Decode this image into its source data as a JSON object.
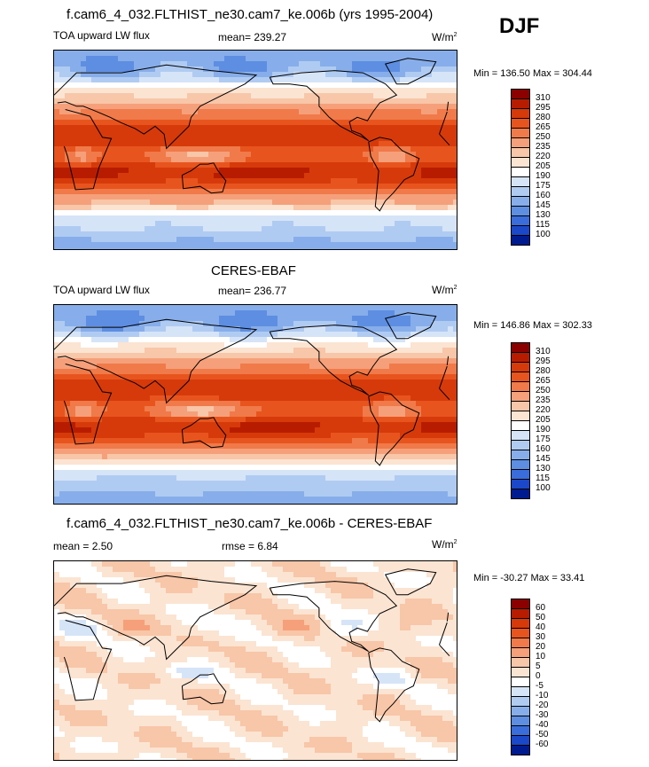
{
  "season": "DJF",
  "panels": [
    {
      "title": "f.cam6_4_032.FLTHIST_ne30.cam7_ke.006b (yrs 1995-2004)",
      "left_label": "TOA upward LW flux",
      "mid_label": "mean= 239.27",
      "right_label": "W/m",
      "right_label_sup": "2",
      "minmax": "Min = 136.50 Max = 304.44"
    },
    {
      "title": "CERES-EBAF",
      "left_label": "TOA upward LW flux",
      "mid_label": "mean= 236.77",
      "right_label": "W/m",
      "right_label_sup": "2",
      "minmax": "Min = 146.86 Max = 302.33"
    },
    {
      "title": "f.cam6_4_032.FLTHIST_ne30.cam7_ke.006b - CERES-EBAF",
      "left_label": "mean =   2.50",
      "mid_label": "rmse =   6.84",
      "right_label": "W/m",
      "right_label_sup": "2",
      "minmax": "Min = -30.27 Max =  33.41"
    }
  ],
  "chart_data": [
    {
      "type": "heatmap",
      "title": "f.cam6_4_032.FLTHIST_ne30.cam7_ke.006b (yrs 1995-2004)",
      "variable": "TOA upward LW flux",
      "units": "W/m2",
      "mean": 239.27,
      "min": 136.5,
      "max": 304.44,
      "colorbar_levels": [
        310,
        295,
        280,
        265,
        250,
        235,
        220,
        205,
        190,
        175,
        160,
        145,
        130,
        115,
        100
      ],
      "colors": [
        "#8b0000",
        "#b81c00",
        "#d63a0a",
        "#e8541e",
        "#f07a4a",
        "#f5a07a",
        "#f8c6a8",
        "#fbe4d2",
        "#ffffff",
        "#d6e4f8",
        "#b0cbf2",
        "#87aeea",
        "#5e8ee2",
        "#3a6ddb",
        "#1b48c9",
        "#001a8f"
      ]
    },
    {
      "type": "heatmap",
      "title": "CERES-EBAF",
      "variable": "TOA upward LW flux",
      "units": "W/m2",
      "mean": 236.77,
      "min": 146.86,
      "max": 302.33,
      "colorbar_levels": [
        310,
        295,
        280,
        265,
        250,
        235,
        220,
        205,
        190,
        175,
        160,
        145,
        130,
        115,
        100
      ],
      "colors": [
        "#8b0000",
        "#b81c00",
        "#d63a0a",
        "#e8541e",
        "#f07a4a",
        "#f5a07a",
        "#f8c6a8",
        "#fbe4d2",
        "#ffffff",
        "#d6e4f8",
        "#b0cbf2",
        "#87aeea",
        "#5e8ee2",
        "#3a6ddb",
        "#1b48c9",
        "#001a8f"
      ]
    },
    {
      "type": "heatmap",
      "title": "f.cam6_4_032.FLTHIST_ne30.cam7_ke.006b - CERES-EBAF",
      "units": "W/m2",
      "mean": 2.5,
      "rmse": 6.84,
      "min": -30.27,
      "max": 33.41,
      "colorbar_levels": [
        60,
        50,
        40,
        30,
        20,
        10,
        5,
        0,
        -5,
        -10,
        -20,
        -30,
        -40,
        -50,
        -60
      ],
      "colors": [
        "#8b0000",
        "#b81c00",
        "#d63a0a",
        "#e8541e",
        "#f07a4a",
        "#f5a07a",
        "#f8c6a8",
        "#fbe4d2",
        "#ffffff",
        "#d6e4f8",
        "#b0cbf2",
        "#87aeea",
        "#5e8ee2",
        "#3a6ddb",
        "#1b48c9",
        "#001a8f"
      ]
    }
  ]
}
